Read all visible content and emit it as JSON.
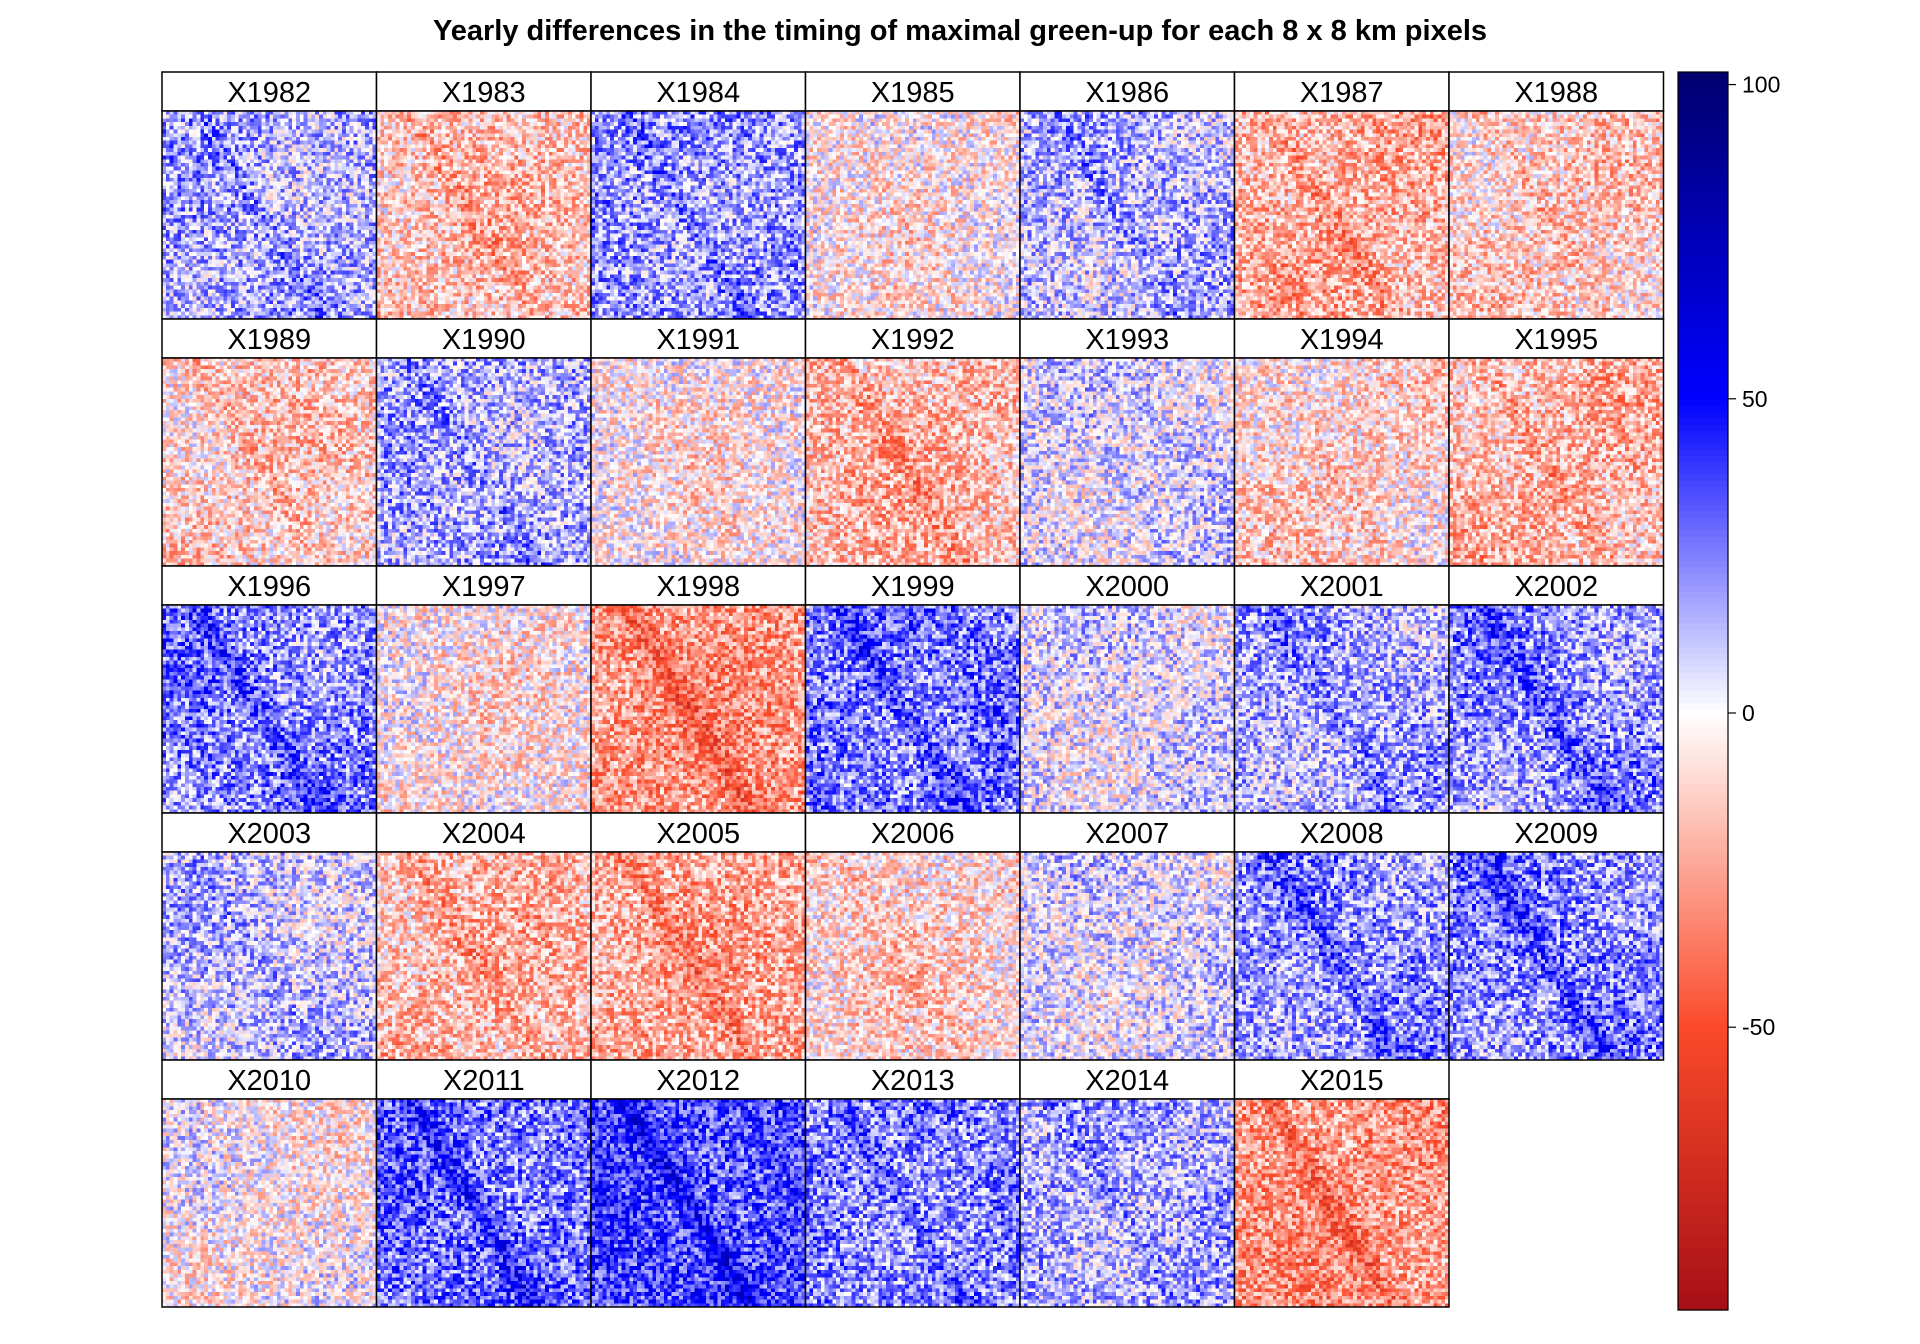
{
  "chart_data": {
    "type": "heatmap",
    "title": "Yearly differences in the timing of maximal green-up for each 8 x 8 km pixels",
    "panels": [
      "X1982",
      "X1983",
      "X1984",
      "X1985",
      "X1986",
      "X1987",
      "X1988",
      "X1989",
      "X1990",
      "X1991",
      "X1992",
      "X1993",
      "X1994",
      "X1995",
      "X1996",
      "X1997",
      "X1998",
      "X1999",
      "X2000",
      "X2001",
      "X2002",
      "X2003",
      "X2004",
      "X2005",
      "X2006",
      "X2007",
      "X2008",
      "X2009",
      "X2010",
      "X2011",
      "X2012",
      "X2013",
      "X2014",
      "X2015"
    ],
    "panel_mean_bias": [
      12,
      -12,
      15,
      -4,
      10,
      -16,
      -10,
      -10,
      12,
      -4,
      -14,
      4,
      -8,
      -14,
      18,
      -4,
      -22,
      20,
      4,
      12,
      16,
      8,
      -14,
      -18,
      -8,
      4,
      16,
      18,
      -2,
      22,
      28,
      18,
      12,
      -22
    ],
    "colorbar": {
      "ticks": [
        100,
        50,
        0,
        -50
      ],
      "tick_labels": [
        "100",
        "50",
        "0",
        "-50"
      ],
      "range": [
        -95,
        102
      ],
      "colors": {
        "min": "#a50f15",
        "low": "#fb4a2a",
        "mid": "#ffffff",
        "high": "#0000ff",
        "max": "#00006e"
      }
    }
  }
}
